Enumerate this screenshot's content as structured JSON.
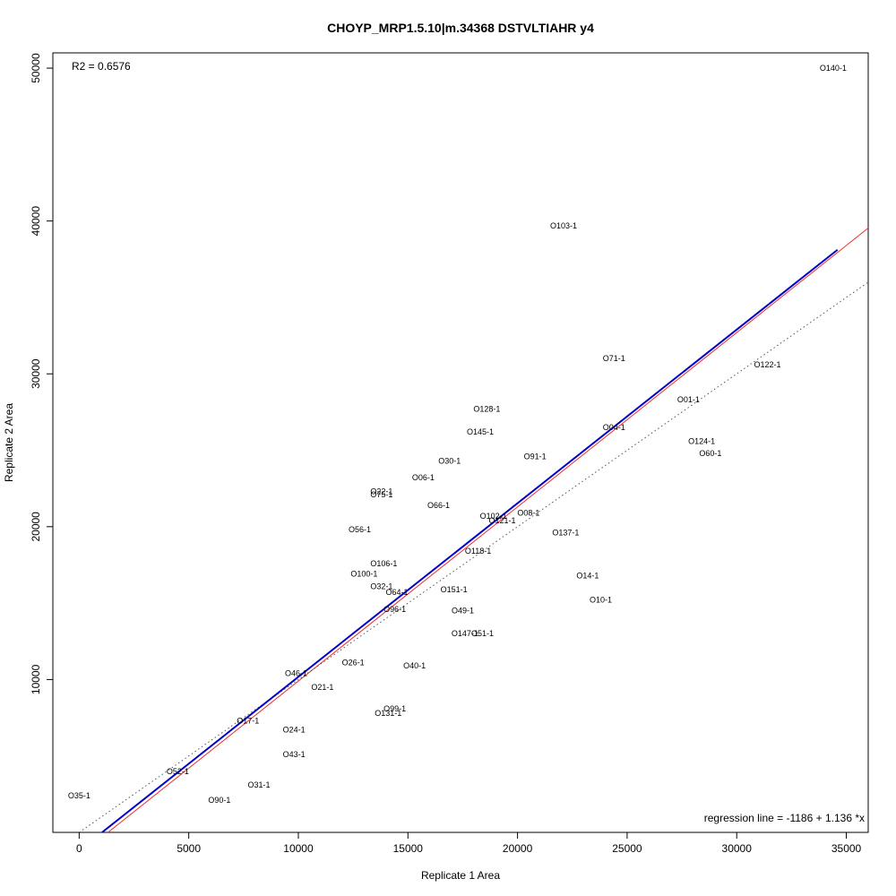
{
  "chart_data": {
    "type": "scatter",
    "title": "CHOYP_MRP1.5.10|m.34368 DSTVLTIAHR y4",
    "xlabel": "Replicate 1 Area",
    "ylabel": "Replicate 2 Area",
    "xlim": [
      -1200,
      36000
    ],
    "ylim": [
      0,
      51000
    ],
    "xticks": [
      0,
      5000,
      10000,
      15000,
      20000,
      25000,
      30000,
      35000
    ],
    "yticks": [
      10000,
      20000,
      30000,
      40000,
      50000
    ],
    "grid": false,
    "r2_text": "R2 = 0.6576",
    "regression_text": "regression line = -1186 + 1.136 *x",
    "points": [
      {
        "label": "O140-1",
        "x": 34400,
        "y": 50000
      },
      {
        "label": "O103-1",
        "x": 22100,
        "y": 39700
      },
      {
        "label": "O71-1",
        "x": 24400,
        "y": 31000
      },
      {
        "label": "O122-1",
        "x": 31400,
        "y": 30600
      },
      {
        "label": "O01-1",
        "x": 27800,
        "y": 28300
      },
      {
        "label": "O128-1",
        "x": 18600,
        "y": 27700
      },
      {
        "label": "O04-1",
        "x": 24400,
        "y": 26500
      },
      {
        "label": "O145-1",
        "x": 18300,
        "y": 26200
      },
      {
        "label": "O124-1",
        "x": 28400,
        "y": 25600
      },
      {
        "label": "O60-1",
        "x": 28800,
        "y": 24800
      },
      {
        "label": "O91-1",
        "x": 20800,
        "y": 24600
      },
      {
        "label": "O30-1",
        "x": 16900,
        "y": 24300
      },
      {
        "label": "O06-1",
        "x": 15700,
        "y": 23200
      },
      {
        "label": "O22-1",
        "x": 13800,
        "y": 22300
      },
      {
        "label": "O75-1",
        "x": 13800,
        "y": 22100
      },
      {
        "label": "O66-1",
        "x": 16400,
        "y": 21400
      },
      {
        "label": "O102-1",
        "x": 18900,
        "y": 20700
      },
      {
        "label": "O08-1",
        "x": 20500,
        "y": 20900
      },
      {
        "label": "O121-1",
        "x": 19300,
        "y": 20400
      },
      {
        "label": "O56-1",
        "x": 12800,
        "y": 19800
      },
      {
        "label": "O137-1",
        "x": 22200,
        "y": 19600
      },
      {
        "label": "O118-1",
        "x": 18200,
        "y": 18400
      },
      {
        "label": "O106-1",
        "x": 13900,
        "y": 17600
      },
      {
        "label": "O100-1",
        "x": 13000,
        "y": 16900
      },
      {
        "label": "O14-1",
        "x": 23200,
        "y": 16800
      },
      {
        "label": "O32-1",
        "x": 13800,
        "y": 16100
      },
      {
        "label": "O64-1",
        "x": 14500,
        "y": 15700
      },
      {
        "label": "O151-1",
        "x": 17100,
        "y": 15900
      },
      {
        "label": "O10-1",
        "x": 23800,
        "y": 15200
      },
      {
        "label": "O96-1",
        "x": 14400,
        "y": 14600
      },
      {
        "label": "O49-1",
        "x": 17500,
        "y": 14500
      },
      {
        "label": "O147-1",
        "x": 17600,
        "y": 13000
      },
      {
        "label": "O51-1",
        "x": 18400,
        "y": 13000
      },
      {
        "label": "O46-1",
        "x": 9900,
        "y": 10400
      },
      {
        "label": "O26-1",
        "x": 12500,
        "y": 11100
      },
      {
        "label": "O40-1",
        "x": 15300,
        "y": 10900
      },
      {
        "label": "O21-1",
        "x": 11100,
        "y": 9500
      },
      {
        "label": "O99-1",
        "x": 14400,
        "y": 8100
      },
      {
        "label": "O131-1",
        "x": 14100,
        "y": 7800
      },
      {
        "label": "O17-1",
        "x": 7700,
        "y": 7300
      },
      {
        "label": "O24-1",
        "x": 9800,
        "y": 6700
      },
      {
        "label": "O43-1",
        "x": 9800,
        "y": 5100
      },
      {
        "label": "O52-1",
        "x": 4500,
        "y": 4000
      },
      {
        "label": "O31-1",
        "x": 8200,
        "y": 3100
      },
      {
        "label": "O35-1",
        "x": 0,
        "y": 2400
      },
      {
        "label": "O90-1",
        "x": 6400,
        "y": 2100
      }
    ],
    "lines": [
      {
        "style": "red",
        "color": "#ee2c2c",
        "intercept": -1500,
        "slope": 1.14
      },
      {
        "style": "dotted",
        "color": "#555555",
        "intercept": 0,
        "slope": 1.0
      },
      {
        "style": "regression",
        "color": "#0000cc",
        "intercept": -1186,
        "slope": 1.136,
        "x_range": [
          -1200,
          34600
        ]
      }
    ]
  }
}
